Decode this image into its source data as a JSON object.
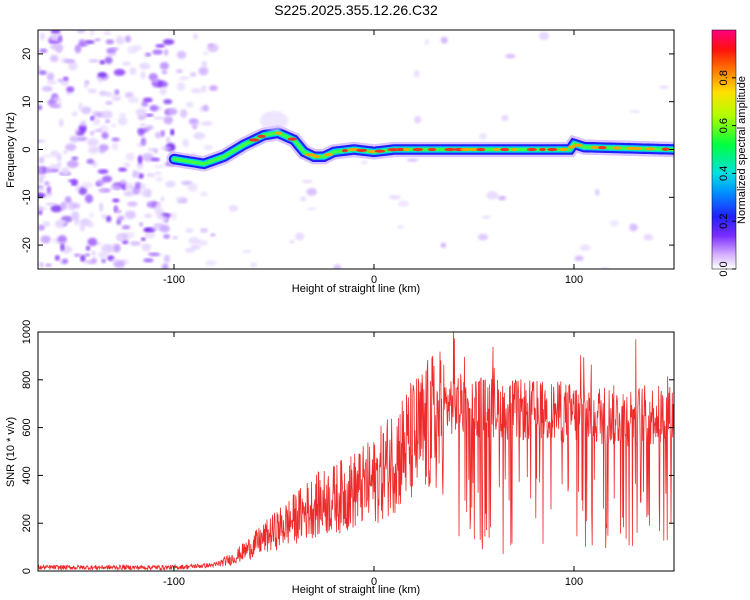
{
  "title": "S225.2025.355.12.26.C32",
  "chart_data": [
    {
      "type": "heatmap",
      "xlabel": "Height of straight line (km)",
      "ylabel": "Frequency (Hz)",
      "xlim": [
        -168,
        150
      ],
      "ylim": [
        -25,
        25
      ],
      "xticks": [
        -100,
        0,
        100
      ],
      "xtick_labels": [
        "-100",
        "0",
        "100"
      ],
      "yticks": [
        -20,
        -10,
        0,
        10,
        20
      ],
      "ytick_labels": [
        "-20",
        "-10",
        "0",
        "10",
        "20"
      ],
      "colorbar": {
        "label": "Normalized spectral amplitude",
        "range": [
          0,
          1
        ],
        "ticks": [
          0.0,
          0.2,
          0.4,
          0.6,
          0.8
        ],
        "tick_labels": [
          "0.0",
          "0.2",
          "0.4",
          "0.6",
          "0.8"
        ]
      },
      "ridge": {
        "description_points_x": [
          -100,
          -85,
          -75,
          -65,
          -55,
          -48,
          -40,
          -35,
          -30,
          -25,
          -20,
          -10,
          0,
          10,
          50,
          98,
          100,
          105,
          150
        ],
        "description_points_y": [
          -2,
          -3,
          -1.5,
          1,
          3,
          3.5,
          2,
          -0.5,
          -1.5,
          -1.5,
          -0.5,
          0,
          -0.5,
          0,
          0,
          0,
          1.2,
          0.5,
          0
        ]
      }
    },
    {
      "type": "line",
      "xlabel": "Height of straight line (km)",
      "ylabel": "SNR (10 * v/v)",
      "xlim": [
        -168,
        150
      ],
      "ylim": [
        0,
        1000
      ],
      "xticks": [
        -100,
        0,
        100
      ],
      "xtick_labels": [
        "-100",
        "0",
        "100"
      ],
      "yticks": [
        0,
        200,
        400,
        600,
        800,
        1000
      ],
      "ytick_labels": [
        "0",
        "200",
        "400",
        "600",
        "800",
        "1000"
      ],
      "series": [
        {
          "name": "SNR",
          "color": "#ee2a2a",
          "envelope_x": [
            -168,
            -100,
            -80,
            -70,
            -60,
            -50,
            -40,
            -30,
            -20,
            -10,
            0,
            10,
            20,
            30,
            40,
            60,
            80,
            100,
            120,
            150
          ],
          "envelope_y": [
            15,
            15,
            25,
            60,
            120,
            180,
            240,
            300,
            330,
            370,
            410,
            520,
            600,
            680,
            700,
            680,
            670,
            660,
            650,
            650
          ]
        }
      ]
    }
  ]
}
